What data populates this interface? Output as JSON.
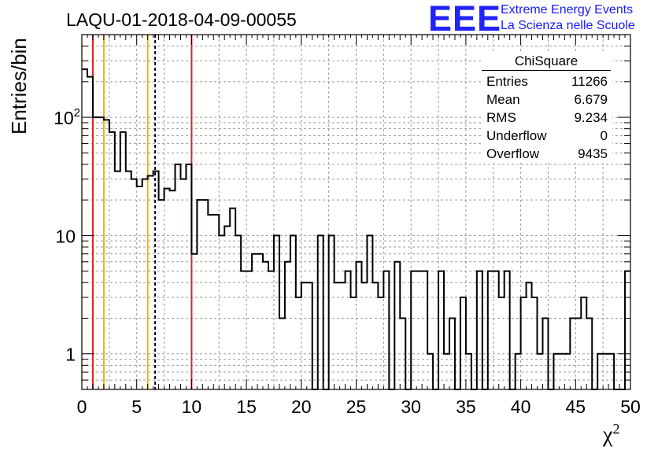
{
  "title": "LAQU-01-2018-04-09-00055",
  "logo": {
    "mark": "EEE",
    "line1": "Extreme Energy Events",
    "line2": "La Scienza nelle Scuole",
    "color": "#2323ff"
  },
  "stats": {
    "title": "ChiSquare",
    "rows": [
      {
        "label": "Entries",
        "value": "11266"
      },
      {
        "label": "Mean",
        "value": "6.679"
      },
      {
        "label": "RMS",
        "value": "9.234"
      },
      {
        "label": "Underflow",
        "value": "0"
      },
      {
        "label": "Overflow",
        "value": "9435"
      }
    ]
  },
  "chart_data": {
    "type": "histogram",
    "ylabel": "Entries/bin",
    "xlabel": "χ",
    "xlabel_sup": "2",
    "xlim": [
      0,
      50
    ],
    "ylim": [
      0.5,
      500
    ],
    "yscale": "log",
    "grid": true,
    "bin_width": 0.5,
    "x_ticks": [
      0,
      5,
      10,
      15,
      20,
      25,
      30,
      35,
      40,
      45,
      50
    ],
    "x_tick_labels": [
      "0",
      "5",
      "10",
      "15",
      "20",
      "25",
      "30",
      "35",
      "40",
      "45",
      "50"
    ],
    "y_ticks": [
      1,
      10,
      100
    ],
    "y_tick_labels": [
      "1",
      "10",
      "10²"
    ],
    "counts": [
      255,
      220,
      100,
      100,
      95,
      75,
      35,
      75,
      35,
      30,
      26,
      30,
      32,
      35,
      20,
      25,
      24,
      40,
      30,
      40,
      7,
      20,
      20,
      15,
      15,
      10,
      12,
      17,
      10,
      5,
      5,
      7,
      7,
      6,
      5,
      10,
      2,
      6,
      10,
      3,
      4,
      4,
      0,
      10,
      0,
      10,
      4,
      4,
      5,
      3,
      6,
      4,
      10,
      4,
      3,
      5,
      0,
      6,
      2,
      0,
      5,
      5,
      5,
      1,
      0,
      5,
      1,
      2,
      0,
      3,
      1,
      0,
      5,
      0,
      5,
      5,
      3,
      5,
      0,
      1,
      3,
      4,
      3,
      1,
      2,
      0,
      1,
      1,
      1,
      2,
      2,
      3,
      2,
      0,
      1,
      1,
      1,
      0,
      0,
      5
    ],
    "reference_lines": [
      {
        "x": 1,
        "color": "#dd2222",
        "style": "solid"
      },
      {
        "x": 2,
        "color": "#f0b400",
        "style": "solid"
      },
      {
        "x": 6,
        "color": "#f0b400",
        "style": "solid"
      },
      {
        "x": 6.679,
        "color": "#000000",
        "style": "dashed"
      },
      {
        "x": 10,
        "color": "#dd2222",
        "style": "solid"
      }
    ]
  }
}
